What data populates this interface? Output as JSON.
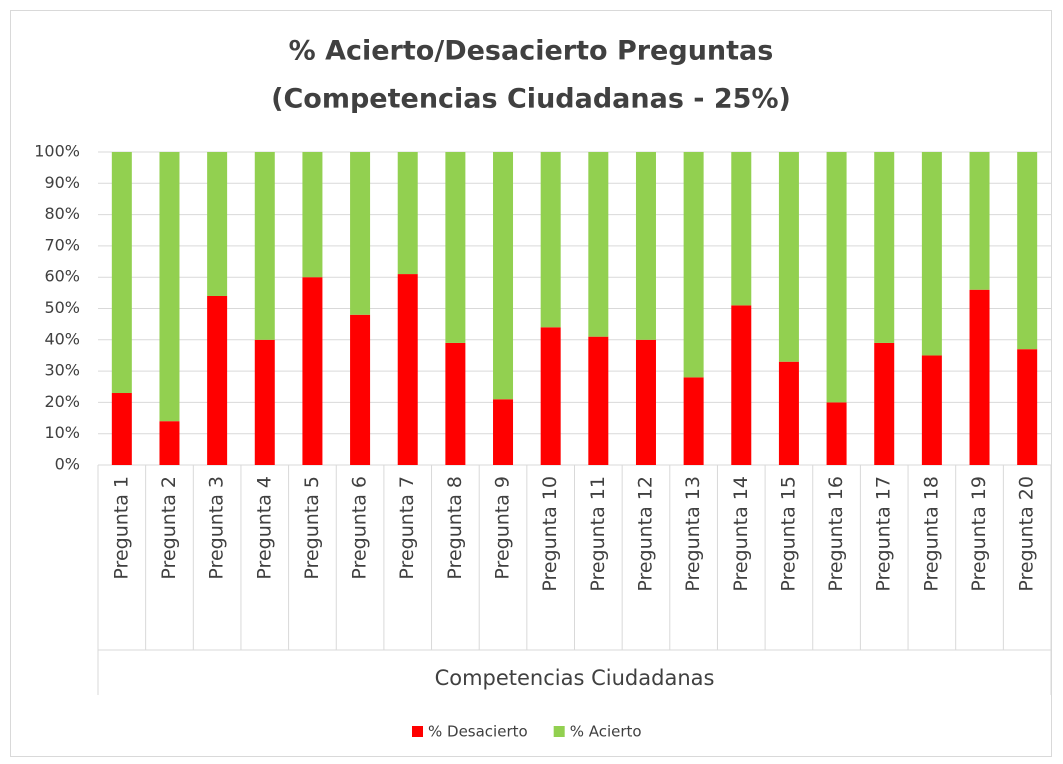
{
  "chart_data": {
    "type": "stacked_bar",
    "title_lines": [
      "% Acierto/Desacierto Preguntas",
      "(Competencias Ciudadanas - 25%)"
    ],
    "xlabel": "Competencias Ciudadanas",
    "categories": [
      "Pregunta 1",
      "Pregunta 2",
      "Pregunta 3",
      "Pregunta 4",
      "Pregunta 5",
      "Pregunta 6",
      "Pregunta 7",
      "Pregunta 8",
      "Pregunta 9",
      "Pregunta 10",
      "Pregunta 11",
      "Pregunta 12",
      "Pregunta 13",
      "Pregunta 14",
      "Pregunta 15",
      "Pregunta 16",
      "Pregunta 17",
      "Pregunta 18",
      "Pregunta 19",
      "Pregunta 20"
    ],
    "series": [
      {
        "name": "% Desacierto",
        "color": "#ff0000",
        "values": [
          23,
          14,
          54,
          40,
          60,
          48,
          61,
          39,
          21,
          44,
          41,
          40,
          28,
          51,
          33,
          20,
          39,
          35,
          56,
          37
        ]
      },
      {
        "name": "% Acierto",
        "color": "#92d050",
        "values": [
          77,
          86,
          46,
          60,
          40,
          52,
          39,
          61,
          79,
          56,
          59,
          60,
          72,
          49,
          67,
          80,
          61,
          65,
          44,
          63
        ]
      }
    ],
    "ylim": [
      0,
      100
    ],
    "yticks": [
      {
        "value": 0,
        "label": "0%"
      },
      {
        "value": 10,
        "label": "10%"
      },
      {
        "value": 20,
        "label": "20%"
      },
      {
        "value": 30,
        "label": "30%"
      },
      {
        "value": 40,
        "label": "40%"
      },
      {
        "value": 50,
        "label": "50%"
      },
      {
        "value": 60,
        "label": "60%"
      },
      {
        "value": 70,
        "label": "70%"
      },
      {
        "value": 80,
        "label": "80%"
      },
      {
        "value": 90,
        "label": "90%"
      },
      {
        "value": 100,
        "label": "100%"
      }
    ],
    "grid": true,
    "legend": "bottom"
  }
}
